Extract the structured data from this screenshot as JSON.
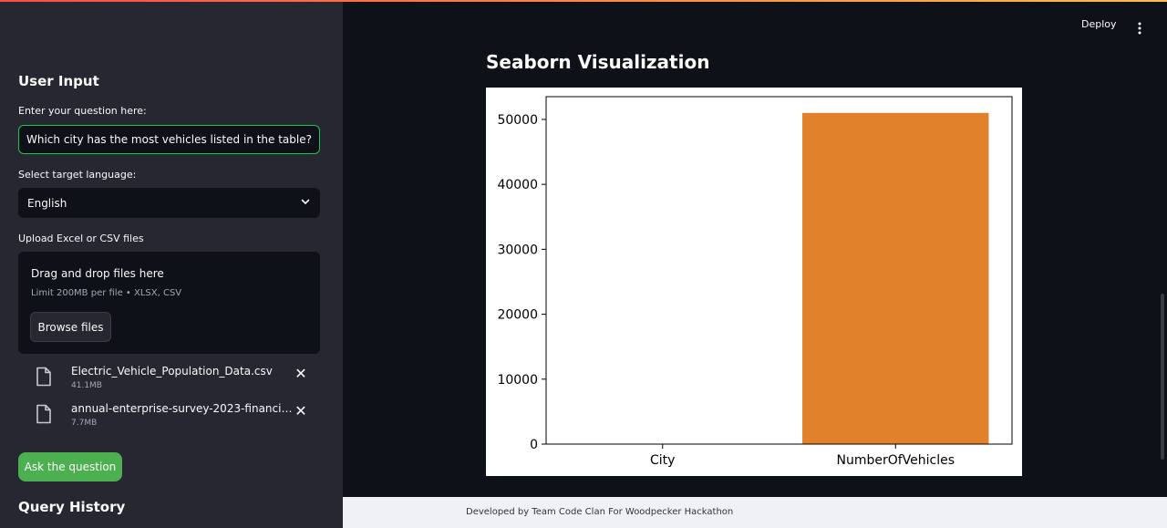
{
  "sidebar": {
    "title": "User Input",
    "question_label": "Enter your question here:",
    "question_value": "Which city has the most vehicles listed in the table?",
    "language_label": "Select target language:",
    "language_value": "English",
    "upload_label": "Upload Excel or CSV files",
    "dropzone_title": "Drag and drop files here",
    "dropzone_limit": "Limit 200MB per file • XLSX, CSV",
    "browse_label": "Browse files",
    "files": [
      {
        "name": "Electric_Vehicle_Population_Data.csv",
        "size": "41.1MB"
      },
      {
        "name": "annual-enterprise-survey-2023-financial-year-provisional.csv",
        "size": "7.7MB"
      }
    ],
    "ask_label": "Ask the question",
    "history_title": "Query History"
  },
  "header": {
    "deploy_label": "Deploy"
  },
  "main": {
    "title": "Seaborn Visualization"
  },
  "footer": {
    "text": "Developed by Team Code Clan For Woodpecker Hackathon"
  },
  "colors": {
    "accent": "#ff4b4b",
    "bar": "#e1812c",
    "button": "#4caf50",
    "input_border": "#21c354"
  },
  "chart_data": {
    "type": "bar",
    "categories": [
      "City",
      "NumberOfVehicles"
    ],
    "values": [
      0,
      51000
    ],
    "ylim": [
      0,
      53500
    ],
    "yticks": [
      0,
      10000,
      20000,
      30000,
      40000,
      50000
    ],
    "xlabel": "",
    "ylabel": "",
    "grid": false
  }
}
